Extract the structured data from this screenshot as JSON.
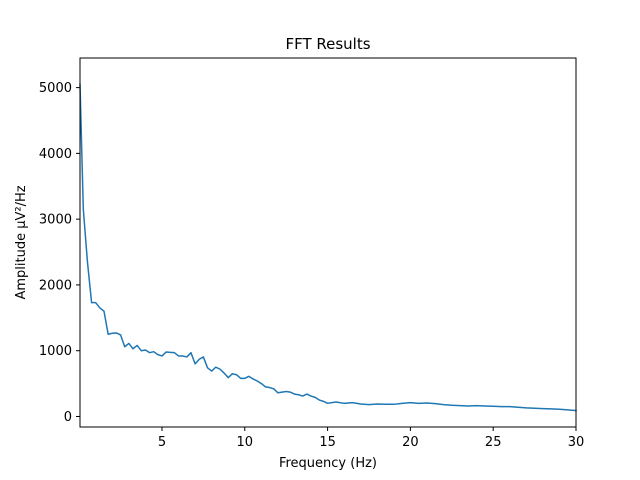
{
  "chart_data": {
    "type": "line",
    "title": "FFT Results",
    "xlabel": "Frequency (Hz)",
    "ylabel": "Amplitude µV²/Hz",
    "xlim": [
      0.05,
      30
    ],
    "ylim": [
      -160,
      5450
    ],
    "x_ticks": [
      5,
      10,
      15,
      20,
      25,
      30
    ],
    "y_ticks": [
      0,
      1000,
      2000,
      3000,
      4000,
      5000
    ],
    "grid": false,
    "legend": "none",
    "series": [
      {
        "color": "#1f77b4",
        "x": [
          0.05,
          0.25,
          0.5,
          0.75,
          1,
          1.25,
          1.5,
          1.75,
          2,
          2.25,
          2.5,
          2.75,
          3,
          3.25,
          3.5,
          3.75,
          4,
          4.25,
          4.5,
          4.75,
          5,
          5.25,
          5.5,
          5.75,
          6,
          6.25,
          6.5,
          6.75,
          7,
          7.25,
          7.5,
          7.75,
          8,
          8.25,
          8.5,
          8.75,
          9,
          9.25,
          9.5,
          9.75,
          10,
          10.25,
          10.5,
          10.75,
          11,
          11.25,
          11.5,
          11.75,
          12,
          12.25,
          12.5,
          12.75,
          13,
          13.25,
          13.5,
          13.75,
          14,
          14.25,
          14.5,
          14.75,
          15,
          15.5,
          16,
          16.5,
          17,
          17.5,
          18,
          18.5,
          19,
          19.5,
          20,
          20.5,
          21,
          21.5,
          22,
          22.5,
          23,
          23.5,
          24,
          24.5,
          25,
          25.5,
          26,
          26.5,
          27,
          27.5,
          28,
          28.5,
          29,
          29.5,
          30
        ],
        "y": [
          5050,
          3150,
          2350,
          1730,
          1730,
          1650,
          1600,
          1250,
          1265,
          1270,
          1240,
          1060,
          1110,
          1030,
          1080,
          1000,
          1010,
          970,
          985,
          940,
          920,
          980,
          975,
          970,
          920,
          920,
          905,
          970,
          800,
          870,
          905,
          740,
          690,
          750,
          720,
          660,
          590,
          650,
          635,
          580,
          580,
          610,
          570,
          540,
          500,
          450,
          440,
          420,
          360,
          370,
          380,
          370,
          340,
          330,
          310,
          340,
          310,
          290,
          250,
          230,
          200,
          220,
          200,
          210,
          190,
          180,
          190,
          185,
          185,
          200,
          210,
          200,
          205,
          195,
          180,
          170,
          165,
          160,
          165,
          160,
          155,
          150,
          150,
          140,
          130,
          125,
          120,
          115,
          110,
          100,
          90
        ]
      }
    ]
  }
}
